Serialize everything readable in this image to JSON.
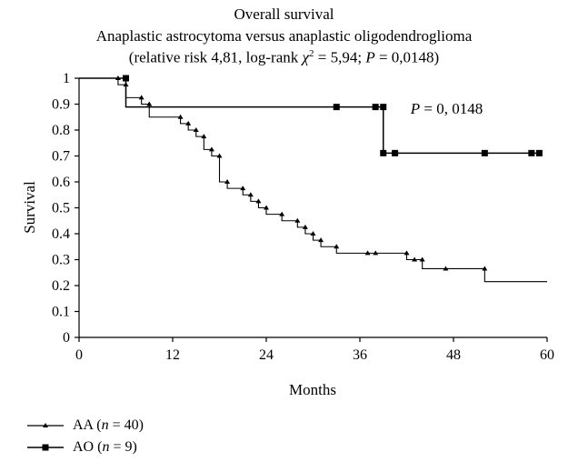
{
  "chart_data": {
    "type": "line",
    "step": true,
    "title": "Overall survival",
    "subtitle": "Anaplastic astrocytoma versus anaplastic oligodendroglioma",
    "subtitle2_parts": {
      "prefix": "(relative risk 4,81, log-rank ",
      "chi": "χ",
      "sup": "2",
      "middle": " = 5,94; ",
      "p": "P",
      "suffix": " = 0,0148)"
    },
    "xlabel": "Months",
    "ylabel": "Survival",
    "xlim": [
      0,
      60
    ],
    "ylim": [
      0,
      1
    ],
    "xticks": [
      0,
      12,
      24,
      36,
      48,
      60
    ],
    "yticks": [
      0,
      0.1,
      0.2,
      0.3,
      0.4,
      0.5,
      0.6,
      0.7,
      0.8,
      0.9,
      1
    ],
    "ytick_labels": [
      "0",
      "0.1",
      "0.2",
      "0.3",
      "0.4",
      "0.5",
      "0.6",
      "0.7",
      "0.8",
      "0.9",
      "1"
    ],
    "annotation": {
      "p": "P",
      "text": " = 0, 0148",
      "x": 42.5,
      "y": 0.885
    },
    "series": [
      {
        "name_abbr": "AA",
        "name_n": "n",
        "name_rest": " = 40",
        "marker": "triangle",
        "steps": [
          [
            0,
            1
          ],
          [
            5,
            0.975
          ],
          [
            6,
            0.925
          ],
          [
            8,
            0.9
          ],
          [
            9,
            0.875
          ],
          [
            9,
            0.85
          ],
          [
            13,
            0.825
          ],
          [
            14,
            0.8
          ],
          [
            15,
            0.775
          ],
          [
            16,
            0.725
          ],
          [
            17,
            0.7
          ],
          [
            18,
            0.675
          ],
          [
            18,
            0.6
          ],
          [
            19,
            0.575
          ],
          [
            21,
            0.55
          ],
          [
            22,
            0.525
          ],
          [
            23,
            0.5
          ],
          [
            24,
            0.475
          ],
          [
            26,
            0.45
          ],
          [
            28,
            0.425
          ],
          [
            29,
            0.4
          ],
          [
            30,
            0.375
          ],
          [
            31,
            0.35
          ],
          [
            33,
            0.325
          ],
          [
            42,
            0.3
          ],
          [
            44,
            0.265
          ],
          [
            52,
            0.215
          ],
          [
            60,
            0.215
          ]
        ],
        "censored": [
          [
            5,
            1
          ],
          [
            6,
            0.975
          ],
          [
            8,
            0.925
          ],
          [
            9,
            0.9
          ],
          [
            13,
            0.85
          ],
          [
            14,
            0.825
          ],
          [
            15,
            0.8
          ],
          [
            16,
            0.775
          ],
          [
            17,
            0.725
          ],
          [
            18,
            0.7
          ],
          [
            19,
            0.6
          ],
          [
            21,
            0.575
          ],
          [
            22,
            0.55
          ],
          [
            23,
            0.525
          ],
          [
            24,
            0.5
          ],
          [
            26,
            0.475
          ],
          [
            28,
            0.45
          ],
          [
            29,
            0.425
          ],
          [
            30,
            0.4
          ],
          [
            31,
            0.375
          ],
          [
            33,
            0.35
          ],
          [
            37,
            0.325
          ],
          [
            38,
            0.325
          ],
          [
            42,
            0.325
          ],
          [
            43,
            0.3
          ],
          [
            44,
            0.3
          ],
          [
            47,
            0.265
          ],
          [
            52,
            0.265
          ]
        ]
      },
      {
        "name_abbr": "AO",
        "name_n": "n",
        "name_rest": " = 9",
        "marker": "square",
        "steps": [
          [
            0,
            1
          ],
          [
            6,
            0.889
          ],
          [
            39,
            0.711
          ],
          [
            59,
            0.711
          ]
        ],
        "censored": [
          [
            6,
            1
          ],
          [
            33,
            0.889
          ],
          [
            38,
            0.889
          ],
          [
            39,
            0.889
          ],
          [
            39,
            0.711
          ],
          [
            40.5,
            0.711
          ],
          [
            52,
            0.711
          ],
          [
            58,
            0.711
          ],
          [
            59,
            0.711
          ]
        ]
      }
    ]
  }
}
